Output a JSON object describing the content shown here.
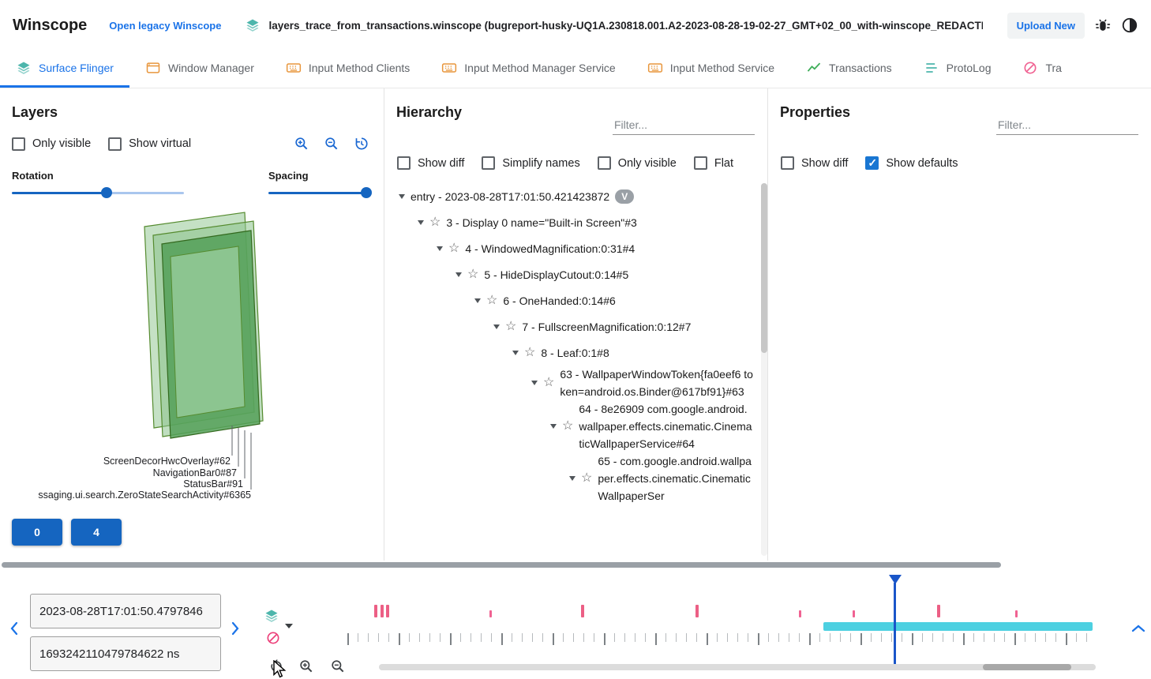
{
  "header": {
    "app_title": "Winscope",
    "legacy_link": "Open legacy Winscope",
    "trace_file": "layers_trace_from_transactions.winscope (bugreport-husky-UQ1A.230818.001.A2-2023-08-28-19-02-27_GMT+02_00_with-winscope_REDACTED.zip)",
    "upload_button": "Upload New"
  },
  "tabs": [
    {
      "label": "Surface Flinger",
      "icon": "layers-icon",
      "active": true
    },
    {
      "label": "Window Manager",
      "icon": "window-icon",
      "active": false
    },
    {
      "label": "Input Method Clients",
      "icon": "keyboard-icon",
      "active": false
    },
    {
      "label": "Input Method Manager Service",
      "icon": "keyboard-icon",
      "active": false
    },
    {
      "label": "Input Method Service",
      "icon": "keyboard-icon",
      "active": false
    },
    {
      "label": "Transactions",
      "icon": "chart-icon",
      "active": false
    },
    {
      "label": "ProtoLog",
      "icon": "list-icon",
      "active": false
    },
    {
      "label": "Tra",
      "icon": "tag-icon",
      "active": false
    }
  ],
  "layers_panel": {
    "title": "Layers",
    "checkboxes": [
      {
        "label": "Only visible",
        "checked": false
      },
      {
        "label": "Show virtual",
        "checked": false
      }
    ],
    "rotation_label": "Rotation",
    "spacing_label": "Spacing",
    "rotation_pct": 55,
    "spacing_pct": 97,
    "layer_labels": [
      "ScreenDecorHwcOverlay#62",
      "NavigationBar0#87",
      "StatusBar#91",
      "ssaging.ui.search.ZeroStateSearchActivity#6365"
    ],
    "display_buttons": [
      "0",
      "4"
    ]
  },
  "hierarchy_panel": {
    "title": "Hierarchy",
    "filter_placeholder": "Filter...",
    "checkboxes": [
      {
        "label": "Show diff",
        "checked": false
      },
      {
        "label": "Simplify names",
        "checked": false
      },
      {
        "label": "Only visible",
        "checked": false
      },
      {
        "label": "Flat",
        "checked": false
      }
    ],
    "tree": [
      {
        "label": "entry - 2023-08-28T17:01:50.421423872",
        "badge": "V"
      },
      {
        "label": "3 - Display 0 name=\"Built-in Screen\"#3"
      },
      {
        "label": "4 - WindowedMagnification:0:31#4"
      },
      {
        "label": "5 - HideDisplayCutout:0:14#5"
      },
      {
        "label": "6 - OneHanded:0:14#6"
      },
      {
        "label": "7 - FullscreenMagnification:0:12#7"
      },
      {
        "label": "8 - Leaf:0:1#8"
      },
      {
        "label": "63 - WallpaperWindowToken{fa0eef6 token=android.os.Binder@617bf91}#63"
      },
      {
        "label": "64 - 8e26909 com.google.android.wallpaper.effects.cinematic.CinematicWallpaperService#64"
      },
      {
        "label": "65 - com.google.android.wallpaper.effects.cinematic.CinematicWallpaperSer"
      }
    ]
  },
  "properties_panel": {
    "title": "Properties",
    "filter_placeholder": "Filter...",
    "checkboxes": [
      {
        "label": "Show diff",
        "checked": false
      },
      {
        "label": "Show defaults",
        "checked": true
      }
    ]
  },
  "timeline": {
    "start_timestamp": "2023-08-28T17:01:50.4797846",
    "ns_timestamp": "1693242110479784622 ns",
    "event_markers": [
      {
        "pct": 3.6,
        "tall": true
      },
      {
        "pct": 4.4,
        "tall": true
      },
      {
        "pct": 5.2,
        "tall": true
      },
      {
        "pct": 19.0,
        "tall": false
      },
      {
        "pct": 31.2,
        "tall": true
      },
      {
        "pct": 46.5,
        "tall": true
      },
      {
        "pct": 60.3,
        "tall": false
      },
      {
        "pct": 67.5,
        "tall": false
      },
      {
        "pct": 78.8,
        "tall": true
      },
      {
        "pct": 89.2,
        "tall": false
      }
    ],
    "range_bar": {
      "start_pct": 63.6,
      "end_pct": 99.6
    },
    "cursor_pct": 73.2
  },
  "colors": {
    "accent_blue": "#1a73e8",
    "button_blue": "#1565c0",
    "teal": "#4db6ac",
    "orange": "#e8963c",
    "green": "#3fae5a",
    "pink": "#f06292",
    "range_teal": "#4dd0e1",
    "cursor_blue": "#1a56c9"
  }
}
